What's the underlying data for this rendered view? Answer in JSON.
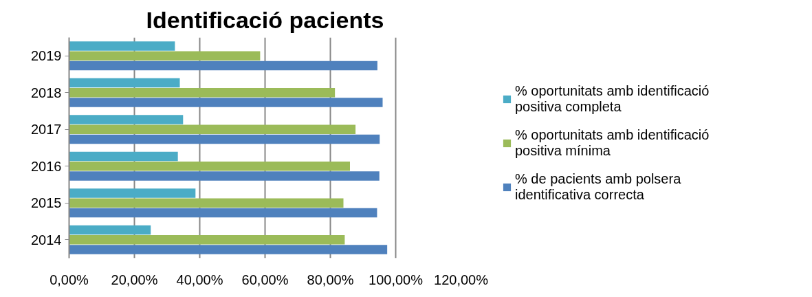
{
  "chart_data": {
    "type": "bar",
    "orientation": "horizontal",
    "title": "Identificació pacients",
    "categories": [
      "2019",
      "2018",
      "2017",
      "2016",
      "2015",
      "2014"
    ],
    "series": [
      {
        "name": "% oportunitats amb identificació positiva completa",
        "color": "#4bacc6",
        "values": [
          0.324,
          0.339,
          0.349,
          0.333,
          0.387,
          0.25
        ]
      },
      {
        "name": "% oportunitats amb identificació positiva mínima",
        "color": "#9bbb59",
        "values": [
          0.585,
          0.814,
          0.877,
          0.86,
          0.84,
          0.844
        ]
      },
      {
        "name": "% de pacients amb polsera identificativa correcta",
        "color": "#4f81bd",
        "values": [
          0.944,
          0.96,
          0.951,
          0.95,
          0.943,
          0.974
        ]
      }
    ],
    "xlim": [
      0,
      1.2
    ],
    "xticks": [
      {
        "value": 0,
        "label": "0,00%"
      },
      {
        "value": 0.2,
        "label": "20,00%"
      },
      {
        "value": 0.4,
        "label": "40,00%"
      },
      {
        "value": 0.6,
        "label": "60,00%"
      },
      {
        "value": 0.8,
        "label": "80,00%"
      },
      {
        "value": 1.0,
        "label": "100,00%"
      },
      {
        "value": 1.2,
        "label": "120,00%"
      }
    ],
    "grid": "x",
    "legend": "right"
  }
}
